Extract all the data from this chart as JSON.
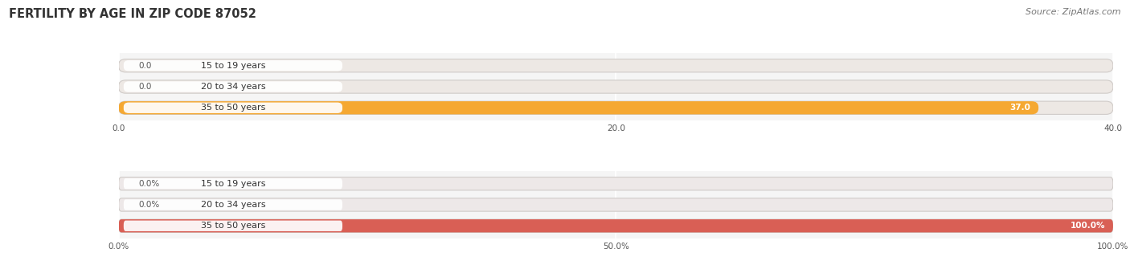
{
  "title": "FERTILITY BY AGE IN ZIP CODE 87052",
  "source_text": "Source: ZipAtlas.com",
  "top_chart": {
    "categories": [
      "15 to 19 years",
      "20 to 34 years",
      "35 to 50 years"
    ],
    "values": [
      0.0,
      0.0,
      37.0
    ],
    "bar_colors": [
      "#f5c49a",
      "#f5c49a",
      "#f5a832"
    ],
    "bg_bar_color": "#ede8e4",
    "xlim": [
      0,
      40
    ],
    "xticks": [
      0.0,
      20.0,
      40.0
    ],
    "xtick_labels": [
      "0.0",
      "20.0",
      "40.0"
    ],
    "bar_label_values": [
      "0.0",
      "0.0",
      "37.0"
    ]
  },
  "bottom_chart": {
    "categories": [
      "15 to 19 years",
      "20 to 34 years",
      "35 to 50 years"
    ],
    "values": [
      0.0,
      0.0,
      100.0
    ],
    "bar_colors": [
      "#e8a8a2",
      "#e8a8a2",
      "#d95f55"
    ],
    "bg_bar_color": "#ede8e8",
    "xlim": [
      0,
      100
    ],
    "xticks": [
      0.0,
      50.0,
      100.0
    ],
    "xtick_labels": [
      "0.0%",
      "50.0%",
      "100.0%"
    ],
    "bar_label_values": [
      "0.0%",
      "0.0%",
      "100.0%"
    ]
  },
  "title_fontsize": 10.5,
  "source_fontsize": 8,
  "bar_height": 0.62,
  "category_fontsize": 8,
  "value_label_fontsize": 7.5,
  "tick_fontsize": 7.5
}
